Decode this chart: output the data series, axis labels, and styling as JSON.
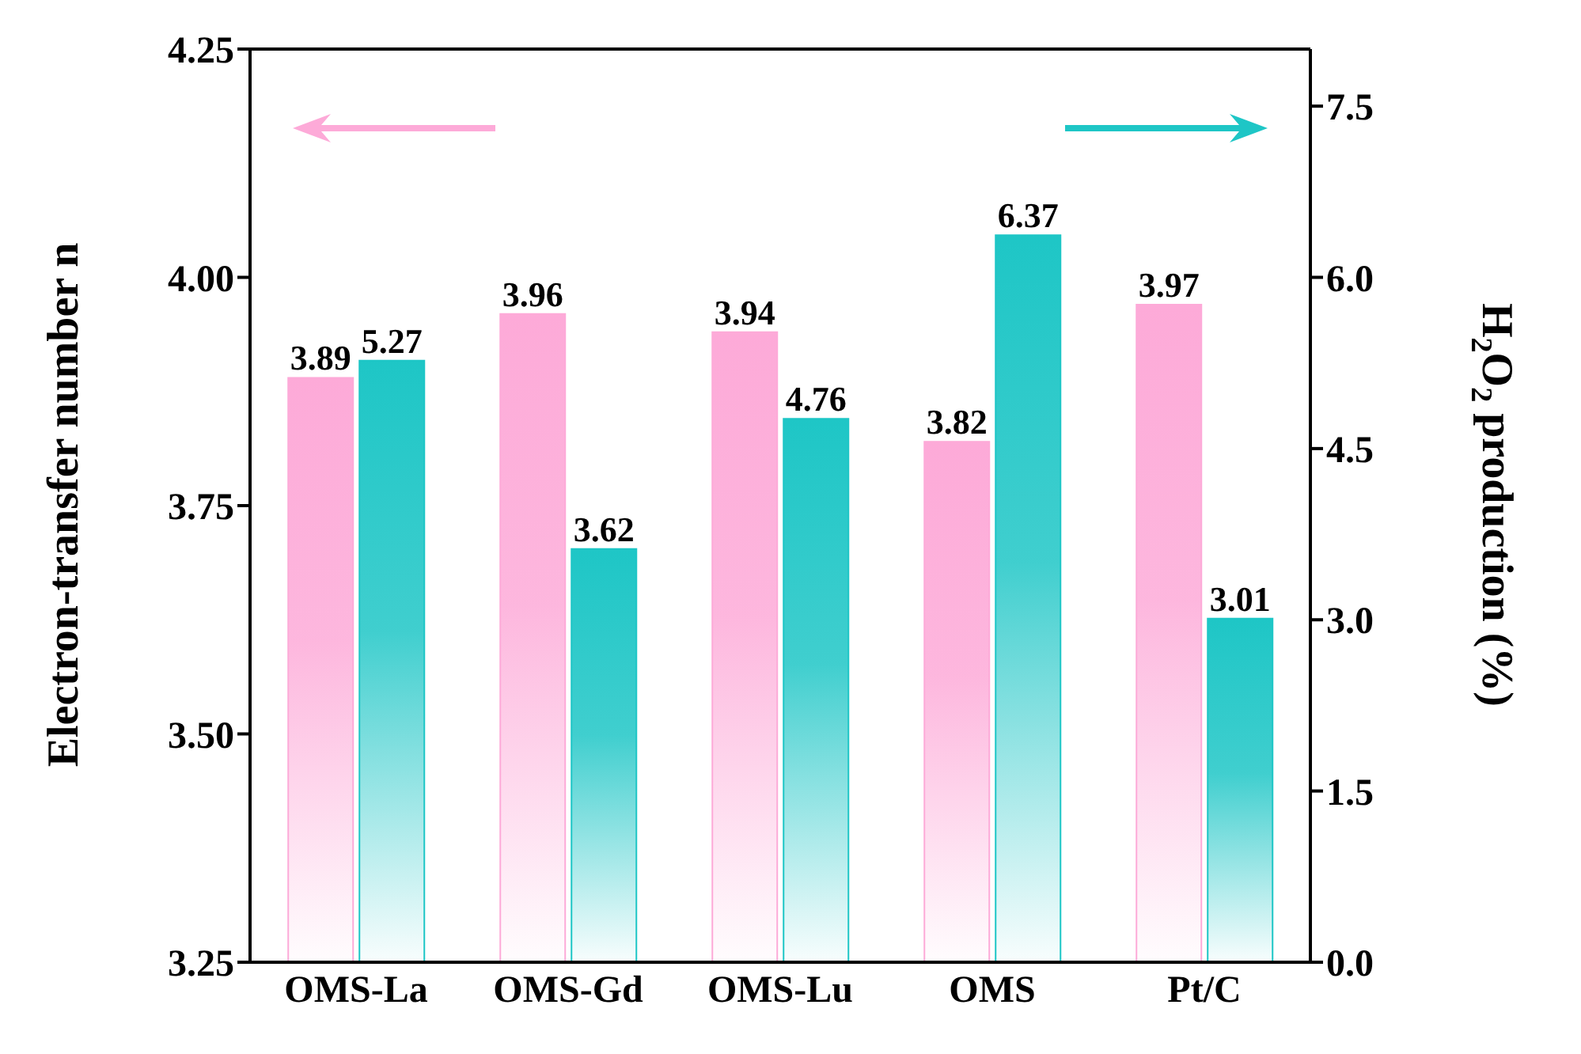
{
  "chart_data": {
    "type": "bar",
    "categories": [
      "OMS-La",
      "OMS-Gd",
      "OMS-Lu",
      "OMS",
      "Pt/C"
    ],
    "series": [
      {
        "color": "#fdaad8",
        "values": [
          3.89,
          3.96,
          3.94,
          3.82,
          3.97
        ]
      },
      {
        "color": "#1ec6c6",
        "axis": "y2",
        "values": [
          5.27,
          3.62,
          4.76,
          6.37,
          3.01
        ]
      }
    ],
    "ylabel": "Electron-transfer number n",
    "y2label": "H$_{2}$O$_{2}$ production (%)",
    "ylim": [
      3.25,
      4.25
    ],
    "yticks": [
      {
        "value": 3.25,
        "label": "3.25"
      },
      {
        "value": 3.5,
        "label": "3.50"
      },
      {
        "value": 3.75,
        "label": "3.75"
      },
      {
        "value": 4,
        "label": "4.00"
      },
      {
        "value": 4.25,
        "label": "4.25"
      }
    ],
    "y2lim": [
      0,
      8
    ],
    "y2ticks": [
      {
        "value": 0,
        "label": "0.0"
      },
      {
        "value": 1.5,
        "label": "1.5"
      },
      {
        "value": 3,
        "label": "3.0"
      },
      {
        "value": 4.5,
        "label": "4.5"
      },
      {
        "value": 6,
        "label": "6.0"
      },
      {
        "value": 7.5,
        "label": "7.5"
      }
    ],
    "data_labels": true,
    "grid": false,
    "legend": false
  }
}
